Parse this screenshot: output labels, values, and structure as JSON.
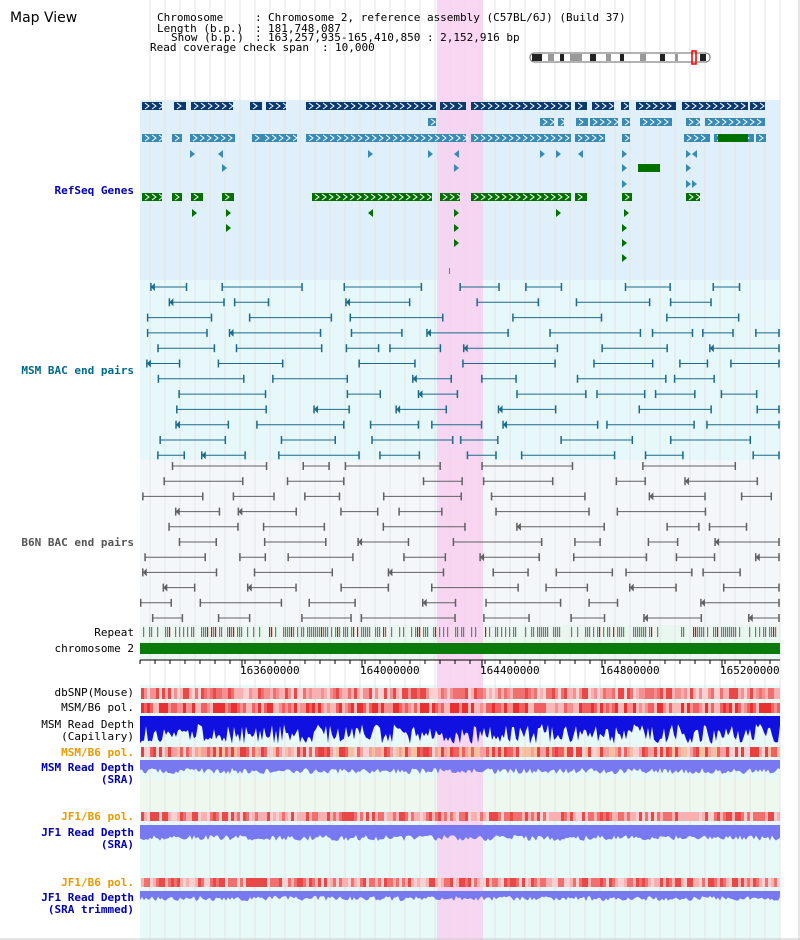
{
  "page": {
    "title": "Map View"
  },
  "info": {
    "chromosome_label": "Chromosome",
    "chromosome_value": "Chromosome 2, reference assembly (C57BL/6J) (Build 37)",
    "length_label": "Length (b.p.)",
    "length_value": "181,748,087",
    "show_label": "Show (b.p.)",
    "show_value": "163,257,935-165,410,850 : 2,152,916 bp",
    "coverage_label": "Read coverage check span",
    "coverage_value": "10,000"
  },
  "tracks": {
    "refseq": "RefSeq Genes",
    "msm_bac": "MSM BAC end pairs",
    "b6n_bac": "B6N BAC end pairs",
    "repeat": "Repeat",
    "chromosome": "chromosome 2",
    "dbsnp": "dbSNP(Mouse)",
    "msm_b6_pol_1": "MSM/B6 pol.",
    "msm_read_depth_cap_1": "MSM Read Depth",
    "msm_read_depth_cap_2": "(Capillary)",
    "msm_b6_pol_2": "MSM/B6 pol.",
    "msm_read_depth_sra_1": "MSM Read Depth",
    "msm_read_depth_sra_2": "(SRA)",
    "jf1_b6_pol_1": "JF1/B6 pol.",
    "jf1_read_depth_sra_1": "JF1 Read Depth",
    "jf1_read_depth_sra_2": "(SRA)",
    "jf1_b6_pol_2": "JF1/B6 pol.",
    "jf1_read_depth_trim_1": "JF1 Read Depth",
    "jf1_read_depth_trim_2": "(SRA trimmed)"
  },
  "axis": {
    "ticks": [
      "163600000",
      "164000000",
      "164400000",
      "164800000",
      "165200000"
    ]
  },
  "colors": {
    "refseq_bg": "#dff0fa",
    "msm_bac_bg": "#e6f8fa",
    "b6n_bac_bg": "#f4f7fa",
    "highlight": "#f8d0f0",
    "gene_dark": "#0a3a6e",
    "gene_mid": "#3a8ab4",
    "gene_green": "#007000",
    "msm_pair": "#1a6a8a",
    "b6n_pair": "#606060",
    "chromosome_bar": "#0a7a0a",
    "read_depth_cap": "#1010e0",
    "read_depth_sra": "#7878f0"
  }
}
